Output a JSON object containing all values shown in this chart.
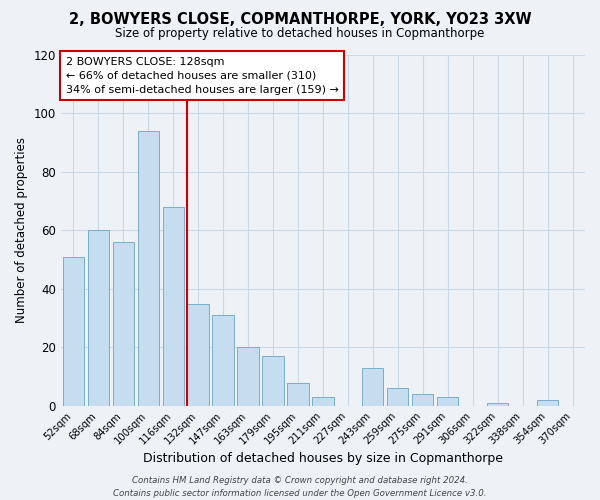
{
  "title": "2, BOWYERS CLOSE, COPMANTHORPE, YORK, YO23 3XW",
  "subtitle": "Size of property relative to detached houses in Copmanthorpe",
  "xlabel": "Distribution of detached houses by size in Copmanthorpe",
  "ylabel": "Number of detached properties",
  "bar_color": "#c5ddef",
  "bar_edge_color": "#7aaecb",
  "categories": [
    "52sqm",
    "68sqm",
    "84sqm",
    "100sqm",
    "116sqm",
    "132sqm",
    "147sqm",
    "163sqm",
    "179sqm",
    "195sqm",
    "211sqm",
    "227sqm",
    "243sqm",
    "259sqm",
    "275sqm",
    "291sqm",
    "306sqm",
    "322sqm",
    "338sqm",
    "354sqm",
    "370sqm"
  ],
  "values": [
    51,
    60,
    56,
    94,
    68,
    35,
    31,
    20,
    17,
    8,
    3,
    0,
    13,
    6,
    4,
    3,
    0,
    1,
    0,
    2,
    0
  ],
  "ylim": [
    0,
    120
  ],
  "yticks": [
    0,
    20,
    40,
    60,
    80,
    100,
    120
  ],
  "annotation_title": "2 BOWYERS CLOSE: 128sqm",
  "annotation_line1": "← 66% of detached houses are smaller (310)",
  "annotation_line2": "34% of semi-detached houses are larger (159) →",
  "annotation_box_color": "#ffffff",
  "annotation_border_color": "#cc0000",
  "redline_color": "#cc0000",
  "redline_x": 4.55,
  "footer_line1": "Contains HM Land Registry data © Crown copyright and database right 2024.",
  "footer_line2": "Contains public sector information licensed under the Open Government Licence v3.0.",
  "background_color": "#eef2f7",
  "plot_background_color": "#eef2f7",
  "grid_color": "#c8d8e8"
}
